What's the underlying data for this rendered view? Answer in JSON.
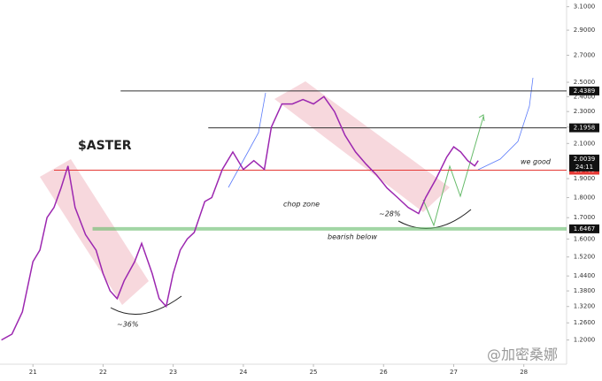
{
  "chart_data": {
    "type": "line",
    "log_scale": true,
    "grid": false,
    "x": [
      20.55,
      20.7,
      20.85,
      21.0,
      21.1,
      21.2,
      21.3,
      21.4,
      21.5,
      21.6,
      21.75,
      21.9,
      22.0,
      22.1,
      22.2,
      22.3,
      22.45,
      22.55,
      22.7,
      22.8,
      22.9,
      23.0,
      23.1,
      23.2,
      23.3,
      23.45,
      23.55,
      23.7,
      23.85,
      24.0,
      24.15,
      24.3,
      24.4,
      24.55,
      24.7,
      24.85,
      25.0,
      25.15,
      25.3,
      25.45,
      25.6,
      25.75,
      25.9,
      26.05,
      26.2,
      26.35,
      26.5,
      26.6,
      26.75,
      26.9,
      27.0,
      27.1,
      27.2,
      27.3,
      27.35
    ],
    "series": [
      {
        "color": "#9c27b0",
        "values": [
          1.2,
          1.22,
          1.3,
          1.5,
          1.55,
          1.7,
          1.75,
          1.85,
          1.97,
          1.75,
          1.62,
          1.55,
          1.45,
          1.38,
          1.35,
          1.42,
          1.5,
          1.58,
          1.45,
          1.35,
          1.32,
          1.45,
          1.55,
          1.6,
          1.63,
          1.78,
          1.8,
          1.95,
          2.05,
          1.95,
          2.0,
          1.95,
          2.2,
          2.35,
          2.35,
          2.38,
          2.35,
          2.4,
          2.3,
          2.15,
          2.05,
          1.98,
          1.92,
          1.85,
          1.8,
          1.75,
          1.72,
          1.8,
          1.9,
          2.02,
          2.08,
          2.05,
          2.0,
          1.97,
          2.0
        ]
      }
    ],
    "xlim": [
      20.53,
      28.61
    ],
    "xticks": [
      21,
      22,
      23,
      24,
      25,
      26,
      27,
      28
    ],
    "ylim": [
      1.12,
      3.16
    ],
    "yticks": [
      {
        "value": 1.2,
        "label": "1.2000"
      },
      {
        "value": 1.26,
        "label": "1.2600"
      },
      {
        "value": 1.32,
        "label": "1.3200"
      },
      {
        "value": 1.38,
        "label": "1.3800"
      },
      {
        "value": 1.44,
        "label": "1.4400"
      },
      {
        "value": 1.52,
        "label": "1.5200"
      },
      {
        "value": 1.6,
        "label": "1.6000"
      },
      {
        "value": 1.7,
        "label": "1.7000"
      },
      {
        "value": 1.8,
        "label": "1.8000"
      },
      {
        "value": 1.9,
        "label": "1.9000"
      },
      {
        "value": 2.1,
        "label": "2.1000"
      },
      {
        "value": 2.2,
        "label": "2.2000"
      },
      {
        "value": 2.3,
        "label": "2.3000"
      },
      {
        "value": 2.4,
        "label": "2.4000"
      },
      {
        "value": 2.5,
        "label": "2.5000"
      },
      {
        "value": 2.7,
        "label": "2.7000"
      },
      {
        "value": 2.9,
        "label": "2.9000"
      },
      {
        "value": 3.1,
        "label": "3.1000"
      }
    ],
    "levels": [
      {
        "value": 2.4389,
        "from": 22.25,
        "color": "#333333",
        "tag_color": "#111111"
      },
      {
        "value": 2.1958,
        "from": 23.5,
        "color": "#333333",
        "tag_color": "#111111"
      },
      {
        "value": 1.9463,
        "from": 21.3,
        "color": "#e53935",
        "tag_color": "#e53935"
      },
      {
        "value": 1.6467,
        "from": 21.85,
        "color": "#66bb6a",
        "tag_color": "#111111"
      }
    ],
    "last_price": 2.0039,
    "countdown": "24:11",
    "annotations": [
      "$ASTER",
      "chop zone",
      "~28%",
      "bearish below",
      "~36%",
      "we good"
    ],
    "watermark": "@加密桑娜"
  }
}
